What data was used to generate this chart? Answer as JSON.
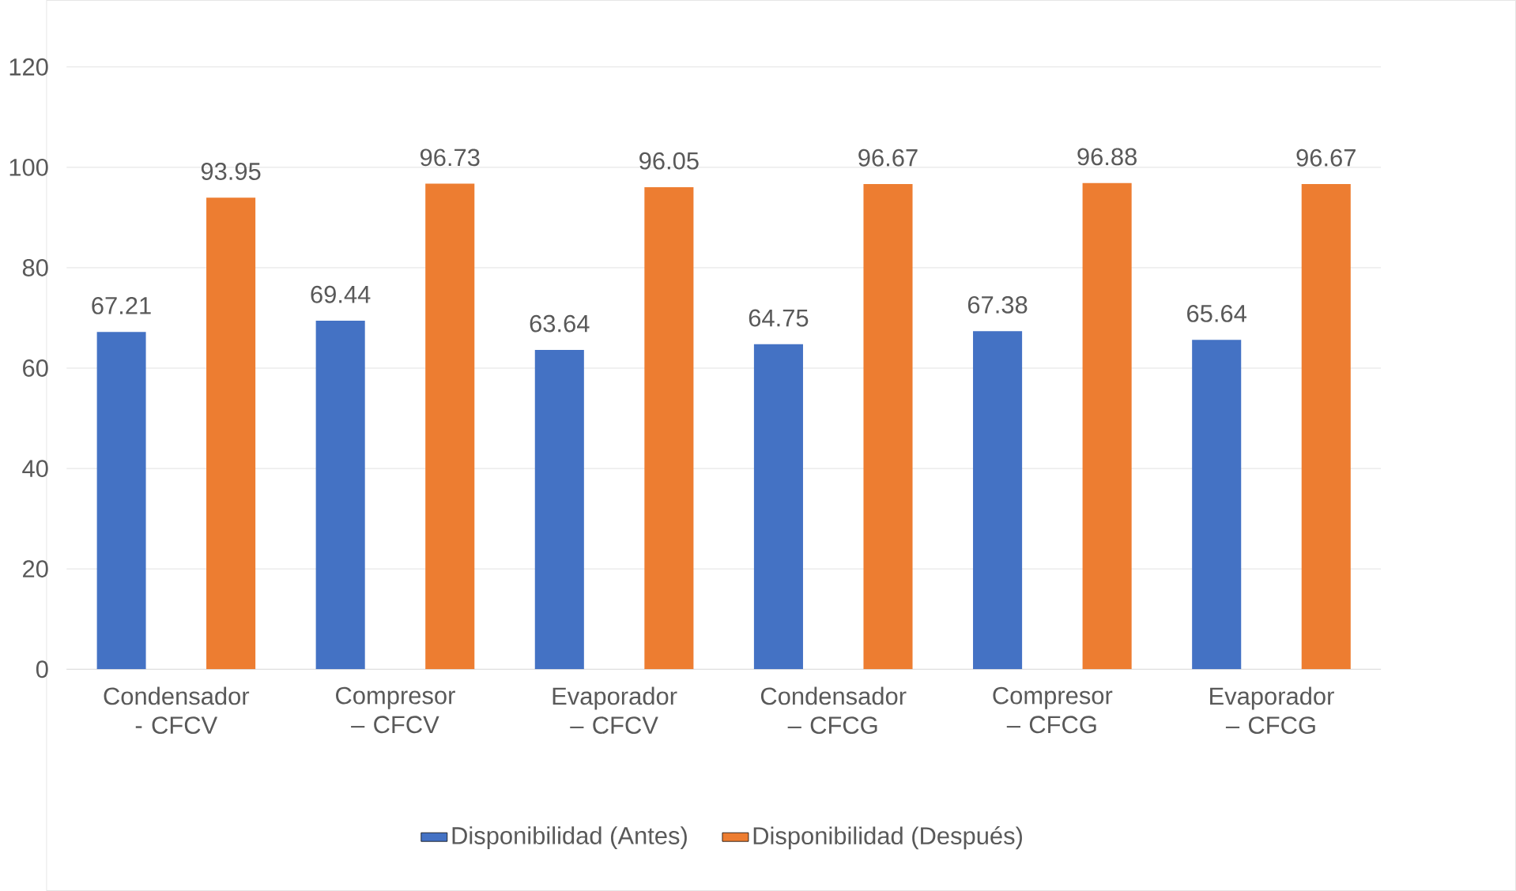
{
  "chart_data": {
    "type": "bar",
    "categories": [
      "Condensador - CFCV",
      "Compresor – CFCV",
      "Evaporador – CFCV",
      "Condensador – CFCG",
      "Compresor – CFCG",
      "Evaporador – CFCG"
    ],
    "series": [
      {
        "name": "Disponibilidad (Antes)",
        "color": "#4472c4",
        "values": [
          67.21,
          69.44,
          63.64,
          64.75,
          67.38,
          65.64
        ]
      },
      {
        "name": "Disponibilidad (Después)",
        "color": "#ed7d31",
        "values": [
          93.95,
          96.73,
          96.05,
          96.67,
          96.88,
          96.67
        ]
      }
    ],
    "ylim": [
      0,
      120
    ],
    "yticks": [
      0,
      20,
      40,
      60,
      80,
      100,
      120
    ],
    "grid": "y",
    "legend": "bottom",
    "data_labels": true
  }
}
